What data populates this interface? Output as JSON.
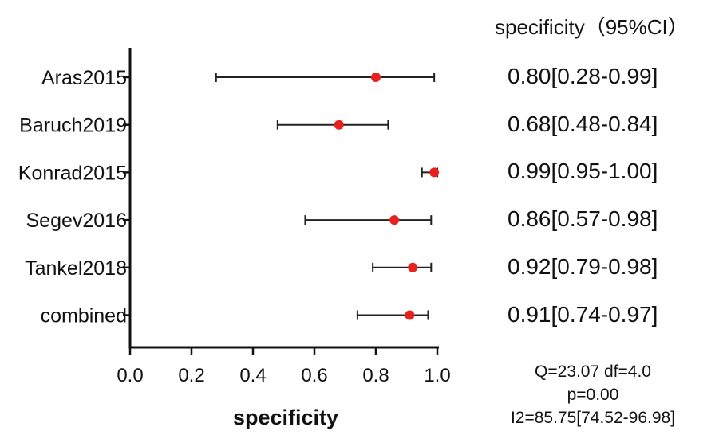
{
  "chart_data": {
    "type": "forest",
    "xlabel": "specificity",
    "xlim": [
      0.0,
      1.0
    ],
    "xticks": [
      "0.0",
      "0.2",
      "0.4",
      "0.6",
      "0.8",
      "1.0"
    ],
    "column_header": "specificity（95%CI）",
    "point_color": "#e8201e",
    "studies": [
      {
        "label": "Aras2015",
        "estimate": 0.8,
        "lower": 0.28,
        "upper": 0.99,
        "ci_text": "0.80[0.28-0.99]"
      },
      {
        "label": "Baruch2019",
        "estimate": 0.68,
        "lower": 0.48,
        "upper": 0.84,
        "ci_text": "0.68[0.48-0.84]"
      },
      {
        "label": "Konrad2015",
        "estimate": 0.99,
        "lower": 0.95,
        "upper": 1.0,
        "ci_text": "0.99[0.95-1.00]"
      },
      {
        "label": "Segev2016",
        "estimate": 0.86,
        "lower": 0.57,
        "upper": 0.98,
        "ci_text": "0.86[0.57-0.98]"
      },
      {
        "label": "Tankel2018",
        "estimate": 0.92,
        "lower": 0.79,
        "upper": 0.98,
        "ci_text": "0.92[0.79-0.98]"
      },
      {
        "label": "combined",
        "estimate": 0.91,
        "lower": 0.74,
        "upper": 0.97,
        "ci_text": "0.91[0.74-0.97]"
      }
    ],
    "stats": {
      "line1": "Q=23.07   df=4.0",
      "line2": "p=0.00",
      "line3": "I2=85.75[74.52-96.98]"
    }
  }
}
